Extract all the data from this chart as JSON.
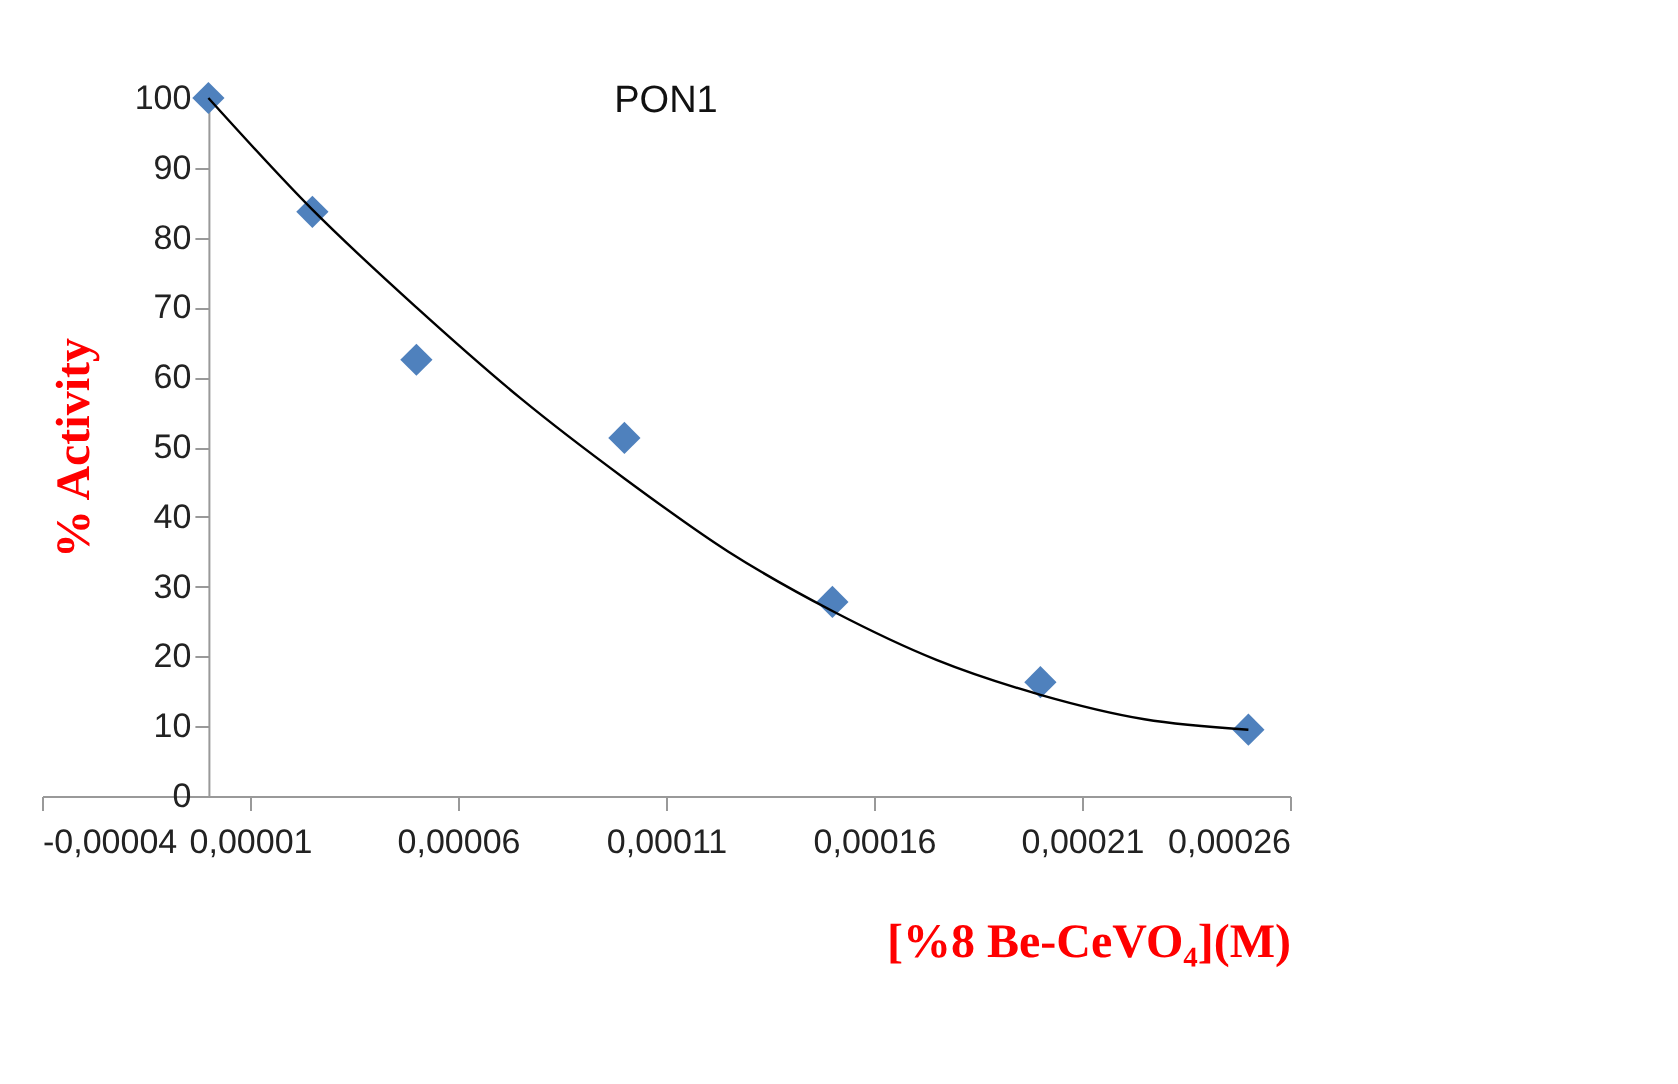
{
  "chart_data": {
    "type": "scatter",
    "title": "PON1",
    "xlabel": "[%8 Be-CeVO₄](M)",
    "ylabel": "% Activity",
    "xlim": [
      -4e-05,
      0.00026
    ],
    "xticks": [
      {
        "value": -4e-05,
        "label": "-0,00004"
      },
      {
        "value": 1e-05,
        "label": "0,00001"
      },
      {
        "value": 6e-05,
        "label": "0,00006"
      },
      {
        "value": 0.00011,
        "label": "0,00011"
      },
      {
        "value": 0.00016,
        "label": "0,00016"
      },
      {
        "value": 0.00021,
        "label": "0,00021"
      },
      {
        "value": 0.00026,
        "label": "0,00026"
      }
    ],
    "ylim": [
      0,
      100
    ],
    "yticks": [
      0,
      10,
      20,
      30,
      40,
      50,
      60,
      70,
      80,
      90,
      100
    ],
    "marker": "diamond",
    "grid": false,
    "series": [
      {
        "color": "#4f81bd",
        "x": [
          0,
          2.5e-05,
          5e-05,
          0.0001,
          0.00015,
          0.0002,
          0.00025
        ],
        "values": [
          100,
          83.7,
          62.5,
          51.3,
          27.8,
          16.3,
          9.5
        ]
      },
      {
        "type": "line",
        "color": "#000000",
        "marker": "none",
        "x": [
          0,
          2.5e-05,
          5e-05,
          7.5e-05,
          0.0001,
          0.000125,
          0.00015,
          0.000175,
          0.0002,
          0.000225,
          0.00025
        ],
        "values": [
          100,
          84,
          70,
          57,
          45.5,
          35,
          26.5,
          19.5,
          14.5,
          11,
          9.5
        ]
      }
    ]
  }
}
